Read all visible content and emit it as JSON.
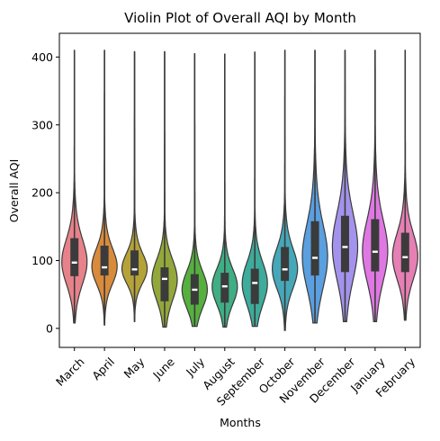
{
  "chart_data": {
    "type": "violin",
    "title": "Violin Plot of Overall AQI by Month",
    "xlabel": "Months",
    "ylabel": "Overall AQI",
    "ylim": [
      -28,
      435
    ],
    "yticks": [
      0,
      100,
      200,
      300,
      400
    ],
    "grid": false,
    "legend": "none",
    "categories": [
      "March",
      "April",
      "May",
      "June",
      "July",
      "August",
      "September",
      "October",
      "November",
      "December",
      "January",
      "February"
    ],
    "colors": [
      "#e8828a",
      "#d98b3c",
      "#b5a33a",
      "#93a83a",
      "#55b03f",
      "#3fae85",
      "#3eab9c",
      "#45a8b8",
      "#5a9fe0",
      "#a493ec",
      "#df78e2",
      "#e67fb4"
    ],
    "violins": [
      {
        "month": "March",
        "min": 8,
        "q1": 77,
        "median": 97,
        "q3": 133,
        "max": 410
      },
      {
        "month": "April",
        "min": 5,
        "q1": 78,
        "median": 90,
        "q3": 122,
        "max": 410
      },
      {
        "month": "May",
        "min": 10,
        "q1": 78,
        "median": 87,
        "q3": 115,
        "max": 408
      },
      {
        "month": "June",
        "min": 2,
        "q1": 40,
        "median": 73,
        "q3": 90,
        "max": 408
      },
      {
        "month": "July",
        "min": 3,
        "q1": 35,
        "median": 57,
        "q3": 80,
        "max": 405
      },
      {
        "month": "August",
        "min": 2,
        "q1": 38,
        "median": 62,
        "q3": 82,
        "max": 405
      },
      {
        "month": "September",
        "min": 3,
        "q1": 36,
        "median": 67,
        "q3": 88,
        "max": 408
      },
      {
        "month": "October",
        "min": -3,
        "q1": 70,
        "median": 87,
        "q3": 120,
        "max": 410
      },
      {
        "month": "November",
        "min": 8,
        "q1": 78,
        "median": 104,
        "q3": 158,
        "max": 410
      },
      {
        "month": "December",
        "min": 10,
        "q1": 83,
        "median": 120,
        "q3": 166,
        "max": 410
      },
      {
        "month": "January",
        "min": 10,
        "q1": 84,
        "median": 113,
        "q3": 161,
        "max": 410
      },
      {
        "month": "February",
        "min": 12,
        "q1": 83,
        "median": 105,
        "q3": 141,
        "max": 410
      }
    ]
  }
}
